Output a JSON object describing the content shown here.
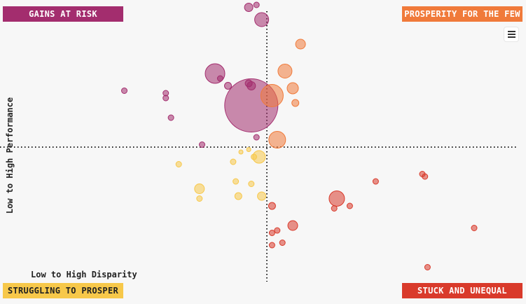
{
  "quadrants": {
    "top_left": {
      "label": "GAINS AT RISK",
      "color": "#a32d6e"
    },
    "top_right": {
      "label": "PROSPERITY FOR THE FEW",
      "color": "#f07a3a"
    },
    "bottom_left": {
      "label": "STRUGGLING TO PROSPER",
      "color": "#f7c84a"
    },
    "bottom_right": {
      "label": "STUCK AND UNEQUAL",
      "color": "#d93a2b"
    }
  },
  "menu": {
    "icon": "hamburger-menu-icon"
  },
  "chart_data": {
    "type": "scatter",
    "title": "",
    "xlabel": "Low to High Disparity",
    "ylabel": "Low to High Performance",
    "xlim": [
      -100,
      100
    ],
    "ylim": [
      -100,
      100
    ],
    "grid": false,
    "legend": "none",
    "crosshair": {
      "x": 0,
      "y": 0,
      "style": "dotted"
    },
    "series": [
      {
        "color": "#a32d6e",
        "points": [
          {
            "x": -7,
            "y": 57,
            "r": 6
          },
          {
            "x": -4,
            "y": 58,
            "r": 4
          },
          {
            "x": -2,
            "y": 52,
            "r": 10
          },
          {
            "x": -20,
            "y": 30,
            "r": 14
          },
          {
            "x": -18,
            "y": 28,
            "r": 4
          },
          {
            "x": -15,
            "y": 25,
            "r": 5
          },
          {
            "x": -6,
            "y": 25,
            "r": 6
          },
          {
            "x": -7,
            "y": 26,
            "r": 5
          },
          {
            "x": -6,
            "y": 17,
            "r": 38
          },
          {
            "x": -55,
            "y": 23,
            "r": 4
          },
          {
            "x": -39,
            "y": 22,
            "r": 4
          },
          {
            "x": -39,
            "y": 20,
            "r": 4
          },
          {
            "x": -37,
            "y": 12,
            "r": 4
          },
          {
            "x": -25,
            "y": 1,
            "r": 4
          },
          {
            "x": -4,
            "y": 4,
            "r": 4
          }
        ]
      },
      {
        "color": "#f07a3a",
        "points": [
          {
            "x": 13,
            "y": 42,
            "r": 7
          },
          {
            "x": 7,
            "y": 31,
            "r": 10
          },
          {
            "x": 10,
            "y": 24,
            "r": 8
          },
          {
            "x": 2,
            "y": 21,
            "r": 16
          },
          {
            "x": 11,
            "y": 18,
            "r": 5
          },
          {
            "x": 4,
            "y": 3,
            "r": 12
          }
        ]
      },
      {
        "color": "#f7c84a",
        "points": [
          {
            "x": -3,
            "y": -4,
            "r": 9
          },
          {
            "x": -5,
            "y": -4,
            "r": 4
          },
          {
            "x": -13,
            "y": -6,
            "r": 4
          },
          {
            "x": -34,
            "y": -7,
            "r": 4
          },
          {
            "x": -26,
            "y": -17,
            "r": 7
          },
          {
            "x": -26,
            "y": -21,
            "r": 4
          },
          {
            "x": -12,
            "y": -14,
            "r": 4
          },
          {
            "x": -11,
            "y": -20,
            "r": 5
          },
          {
            "x": -6,
            "y": -15,
            "r": 4
          },
          {
            "x": -2,
            "y": -20,
            "r": 6
          },
          {
            "x": -10,
            "y": -2,
            "r": 3
          },
          {
            "x": -7,
            "y": -1,
            "r": 3
          }
        ]
      },
      {
        "color": "#d93a2b",
        "points": [
          {
            "x": 27,
            "y": -21,
            "r": 11
          },
          {
            "x": 26,
            "y": -25,
            "r": 4
          },
          {
            "x": 32,
            "y": -24,
            "r": 4
          },
          {
            "x": 2,
            "y": -24,
            "r": 5
          },
          {
            "x": 10,
            "y": -32,
            "r": 7
          },
          {
            "x": 4,
            "y": -34,
            "r": 4
          },
          {
            "x": 2,
            "y": -35,
            "r": 4
          },
          {
            "x": 6,
            "y": -39,
            "r": 4
          },
          {
            "x": 2,
            "y": -40,
            "r": 4
          },
          {
            "x": 42,
            "y": -14,
            "r": 4
          },
          {
            "x": 60,
            "y": -11,
            "r": 4
          },
          {
            "x": 61,
            "y": -12,
            "r": 4
          },
          {
            "x": 80,
            "y": -33,
            "r": 4
          },
          {
            "x": 62,
            "y": -49,
            "r": 4
          }
        ]
      }
    ]
  }
}
